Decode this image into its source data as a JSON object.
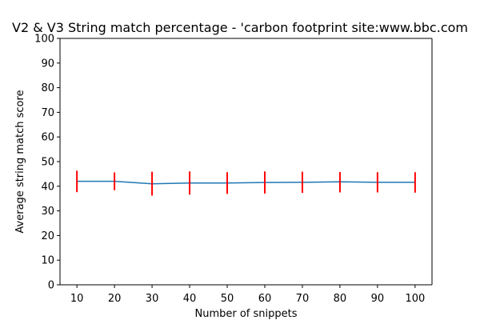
{
  "chart_data": {
    "type": "line",
    "title": "V2 & V3 String match percentage - 'carbon footprint site:www.bbc.com",
    "xlabel": "Number of snippets",
    "ylabel": "Average string match score",
    "x": [
      10,
      20,
      30,
      40,
      50,
      60,
      70,
      80,
      90,
      100
    ],
    "series": [
      {
        "values": [
          42.0,
          42.0,
          41.0,
          41.3,
          41.3,
          41.5,
          41.6,
          41.8,
          41.6,
          41.6
        ],
        "error_low": [
          37.6,
          38.4,
          36.2,
          36.6,
          36.9,
          37.0,
          37.3,
          37.5,
          37.5,
          37.4
        ],
        "error_high": [
          46.3,
          45.6,
          45.9,
          46.0,
          45.7,
          46.0,
          45.9,
          45.8,
          45.7,
          45.7
        ],
        "color": "#1f77b4",
        "error_color": "#ff0000"
      }
    ],
    "xticks": [
      10,
      20,
      30,
      40,
      50,
      60,
      70,
      80,
      90,
      100
    ],
    "yticks": [
      0,
      10,
      20,
      30,
      40,
      50,
      60,
      70,
      80,
      90,
      100
    ],
    "xlim": [
      5.5,
      104.5
    ],
    "ylim": [
      0,
      100
    ],
    "grid": false,
    "legend": "none"
  }
}
